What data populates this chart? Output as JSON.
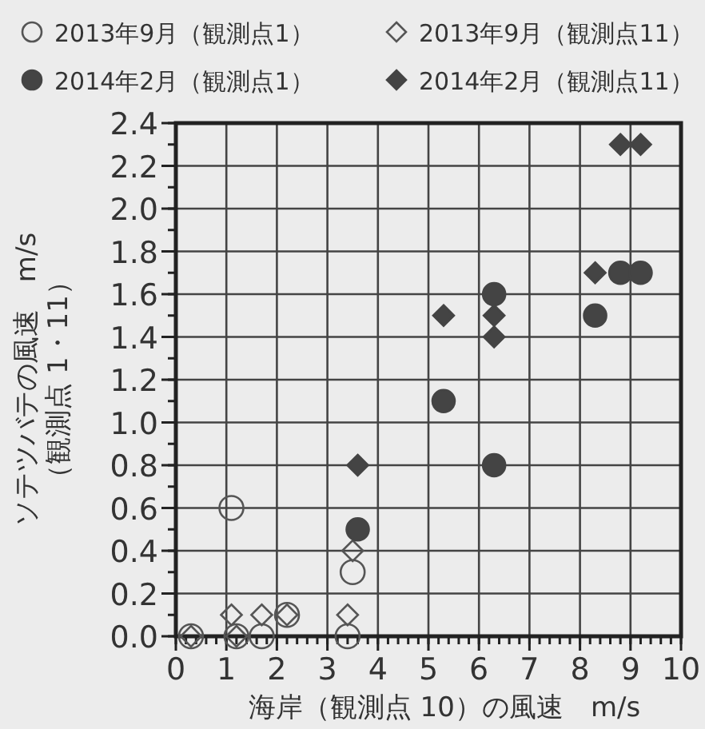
{
  "chart_data": {
    "type": "scatter",
    "xlabel": "海岸（観測点 10）の風速　m/s",
    "ylabel": "ソテツバテの風速　m/s\n（観測点 1・11）",
    "xlim": [
      0,
      10
    ],
    "ylim": [
      0,
      2.4
    ],
    "xticks": [
      0,
      1,
      2,
      3,
      4,
      5,
      6,
      7,
      8,
      9,
      10
    ],
    "yticks": [
      {
        "value": 0,
        "label": "0.0"
      },
      {
        "value": 0.2,
        "label": "0.2"
      },
      {
        "value": 0.4,
        "label": "0.4"
      },
      {
        "value": 0.6,
        "label": "0.6"
      },
      {
        "value": 0.8,
        "label": "0.8"
      },
      {
        "value": 1,
        "label": "1.0"
      },
      {
        "value": 1.2,
        "label": "1.2"
      },
      {
        "value": 1.4,
        "label": "1.4"
      },
      {
        "value": 1.6,
        "label": "1.6"
      },
      {
        "value": 1.8,
        "label": "1.8"
      },
      {
        "value": 2,
        "label": "2.0"
      },
      {
        "value": 2.2,
        "label": "2.2"
      },
      {
        "value": 2.4,
        "label": "2.4"
      }
    ],
    "grid": true,
    "legend": "top",
    "series": [
      {
        "name": "2013年9月（観測点1）",
        "color": "#555555",
        "marker": "circle",
        "x": [
          0.3,
          1.1,
          1.2,
          1.7,
          2.2,
          3.4,
          3.5
        ],
        "values": [
          0,
          0.6,
          0,
          0,
          0.1,
          0,
          0.3
        ]
      },
      {
        "name": "2013年9月（観測点11）",
        "color": "#555555",
        "marker": "diamond",
        "x": [
          0.3,
          1.1,
          1.2,
          1.7,
          2.2,
          3.4,
          3.5
        ],
        "values": [
          0,
          0.1,
          0,
          0.1,
          0.1,
          0.1,
          0.4
        ]
      },
      {
        "name": "2014年2月（観測点1）",
        "color": "#444444",
        "marker": "circle",
        "x": [
          3.6,
          5.3,
          6.3,
          6.3,
          8.3,
          8.8,
          9.2
        ],
        "values": [
          0.5,
          1.1,
          1.6,
          0.8,
          1.5,
          1.7,
          1.7
        ]
      },
      {
        "name": "2014年2月（観測点11）",
        "color": "#444444",
        "marker": "diamond",
        "x": [
          3.6,
          5.3,
          6.3,
          6.3,
          8.3,
          8.8,
          9.2
        ],
        "values": [
          0.8,
          1.5,
          1.5,
          1.4,
          1.7,
          2.3,
          2.3
        ]
      }
    ]
  }
}
